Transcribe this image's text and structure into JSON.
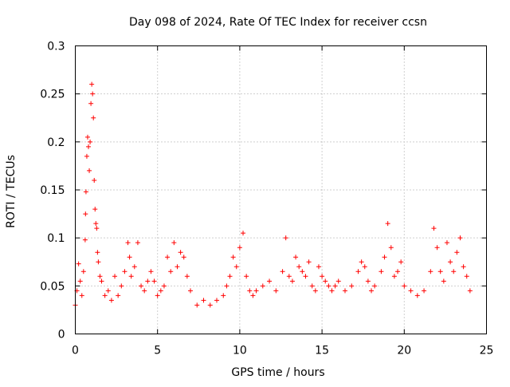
{
  "chart_data": {
    "type": "scatter",
    "title": "Day 098 of 2024, Rate Of TEC Index for receiver ccsn",
    "xlabel": "GPS time / hours",
    "ylabel": "ROTI / TECUs",
    "xlim": [
      0,
      25
    ],
    "ylim": [
      0,
      0.3
    ],
    "x_ticks": [
      0,
      5,
      10,
      15,
      20,
      25
    ],
    "x_tick_labels": [
      "0",
      "5",
      "10",
      "15",
      "20",
      "25"
    ],
    "y_ticks": [
      0,
      0.05,
      0.1,
      0.15,
      0.2,
      0.25,
      0.3
    ],
    "y_tick_labels": [
      "0",
      "0.05",
      "0.1",
      "0.15",
      "0.2",
      "0.25",
      "0.3"
    ],
    "grid": true,
    "marker": "+",
    "series": [
      {
        "name": "ROTI",
        "color": "#ff0000",
        "points": [
          [
            0.0,
            0.03
          ],
          [
            0.1,
            0.045
          ],
          [
            0.2,
            0.073
          ],
          [
            0.3,
            0.055
          ],
          [
            0.4,
            0.04
          ],
          [
            0.5,
            0.065
          ],
          [
            0.6,
            0.098
          ],
          [
            0.62,
            0.125
          ],
          [
            0.65,
            0.148
          ],
          [
            0.7,
            0.185
          ],
          [
            0.75,
            0.205
          ],
          [
            0.8,
            0.195
          ],
          [
            0.85,
            0.17
          ],
          [
            0.9,
            0.2
          ],
          [
            0.95,
            0.24
          ],
          [
            1.0,
            0.26
          ],
          [
            1.05,
            0.25
          ],
          [
            1.1,
            0.225
          ],
          [
            1.15,
            0.16
          ],
          [
            1.2,
            0.13
          ],
          [
            1.25,
            0.115
          ],
          [
            1.3,
            0.11
          ],
          [
            1.35,
            0.085
          ],
          [
            1.4,
            0.075
          ],
          [
            1.5,
            0.06
          ],
          [
            1.6,
            0.055
          ],
          [
            1.8,
            0.04
          ],
          [
            2.0,
            0.045
          ],
          [
            2.2,
            0.035
          ],
          [
            2.4,
            0.06
          ],
          [
            2.6,
            0.04
          ],
          [
            2.8,
            0.05
          ],
          [
            3.0,
            0.065
          ],
          [
            3.2,
            0.095
          ],
          [
            3.3,
            0.08
          ],
          [
            3.4,
            0.06
          ],
          [
            3.6,
            0.07
          ],
          [
            3.8,
            0.095
          ],
          [
            4.0,
            0.05
          ],
          [
            4.2,
            0.045
          ],
          [
            4.4,
            0.055
          ],
          [
            4.6,
            0.065
          ],
          [
            4.8,
            0.055
          ],
          [
            5.0,
            0.04
          ],
          [
            5.2,
            0.045
          ],
          [
            5.4,
            0.05
          ],
          [
            5.6,
            0.08
          ],
          [
            5.8,
            0.065
          ],
          [
            6.0,
            0.095
          ],
          [
            6.2,
            0.07
          ],
          [
            6.4,
            0.085
          ],
          [
            6.6,
            0.08
          ],
          [
            6.8,
            0.06
          ],
          [
            7.0,
            0.045
          ],
          [
            7.4,
            0.03
          ],
          [
            7.8,
            0.035
          ],
          [
            8.2,
            0.03
          ],
          [
            8.6,
            0.035
          ],
          [
            9.0,
            0.04
          ],
          [
            9.2,
            0.05
          ],
          [
            9.4,
            0.06
          ],
          [
            9.6,
            0.08
          ],
          [
            9.8,
            0.07
          ],
          [
            10.0,
            0.09
          ],
          [
            10.2,
            0.105
          ],
          [
            10.4,
            0.06
          ],
          [
            10.6,
            0.045
          ],
          [
            10.8,
            0.04
          ],
          [
            11.0,
            0.045
          ],
          [
            11.4,
            0.05
          ],
          [
            11.8,
            0.055
          ],
          [
            12.2,
            0.045
          ],
          [
            12.6,
            0.065
          ],
          [
            12.8,
            0.1
          ],
          [
            13.0,
            0.06
          ],
          [
            13.2,
            0.055
          ],
          [
            13.4,
            0.08
          ],
          [
            13.6,
            0.07
          ],
          [
            13.8,
            0.065
          ],
          [
            14.0,
            0.06
          ],
          [
            14.2,
            0.075
          ],
          [
            14.4,
            0.05
          ],
          [
            14.6,
            0.045
          ],
          [
            14.8,
            0.07
          ],
          [
            15.0,
            0.06
          ],
          [
            15.2,
            0.055
          ],
          [
            15.4,
            0.05
          ],
          [
            15.6,
            0.045
          ],
          [
            15.8,
            0.05
          ],
          [
            16.0,
            0.055
          ],
          [
            16.4,
            0.045
          ],
          [
            16.8,
            0.05
          ],
          [
            17.2,
            0.065
          ],
          [
            17.4,
            0.075
          ],
          [
            17.6,
            0.07
          ],
          [
            17.8,
            0.055
          ],
          [
            18.0,
            0.045
          ],
          [
            18.2,
            0.05
          ],
          [
            18.6,
            0.065
          ],
          [
            18.8,
            0.08
          ],
          [
            19.0,
            0.115
          ],
          [
            19.2,
            0.09
          ],
          [
            19.4,
            0.06
          ],
          [
            19.6,
            0.065
          ],
          [
            19.8,
            0.075
          ],
          [
            20.0,
            0.05
          ],
          [
            20.4,
            0.045
          ],
          [
            20.8,
            0.04
          ],
          [
            21.2,
            0.045
          ],
          [
            21.6,
            0.065
          ],
          [
            21.8,
            0.11
          ],
          [
            22.0,
            0.09
          ],
          [
            22.2,
            0.065
          ],
          [
            22.4,
            0.055
          ],
          [
            22.6,
            0.095
          ],
          [
            22.8,
            0.075
          ],
          [
            23.0,
            0.065
          ],
          [
            23.2,
            0.085
          ],
          [
            23.4,
            0.1
          ],
          [
            23.6,
            0.07
          ],
          [
            23.8,
            0.06
          ],
          [
            24.0,
            0.045
          ]
        ]
      }
    ]
  }
}
